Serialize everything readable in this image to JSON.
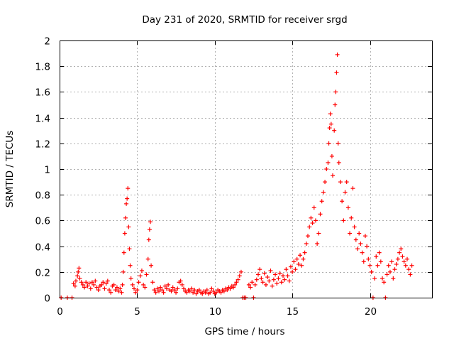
{
  "chart_data": {
    "type": "scatter",
    "title": "Day 231 of 2020, SRMTID for receiver srgd",
    "xlabel": "GPS time / hours",
    "ylabel": "SRMTID / TECUs",
    "xlim": [
      0,
      24
    ],
    "ylim": [
      0,
      2
    ],
    "xticks": [
      0,
      5,
      10,
      15,
      20
    ],
    "yticks": [
      0,
      0.2,
      0.4,
      0.6,
      0.8,
      1,
      1.2,
      1.4,
      1.6,
      1.8,
      2
    ],
    "xtick_labels": [
      "0",
      "5",
      "10",
      "15",
      "20"
    ],
    "ytick_labels": [
      "0",
      "0.2",
      "0.4",
      "0.6",
      "0.8",
      "1",
      "1.2",
      "1.4",
      "1.6",
      "1.8",
      "2"
    ],
    "grid": true,
    "marker": "+",
    "marker_color": "#ff0000",
    "series": [
      {
        "name": "SRMTID",
        "points": [
          [
            0.1,
            0.0
          ],
          [
            0.5,
            0.0
          ],
          [
            0.8,
            0.0
          ],
          [
            0.9,
            0.11
          ],
          [
            1.0,
            0.09
          ],
          [
            1.05,
            0.13
          ],
          [
            1.15,
            0.17
          ],
          [
            1.2,
            0.2
          ],
          [
            1.25,
            0.23
          ],
          [
            1.3,
            0.15
          ],
          [
            1.4,
            0.12
          ],
          [
            1.5,
            0.1
          ],
          [
            1.6,
            0.08
          ],
          [
            1.7,
            0.12
          ],
          [
            1.8,
            0.09
          ],
          [
            1.9,
            0.11
          ],
          [
            2.0,
            0.07
          ],
          [
            2.1,
            0.12
          ],
          [
            2.2,
            0.1
          ],
          [
            2.3,
            0.13
          ],
          [
            2.4,
            0.08
          ],
          [
            2.5,
            0.06
          ],
          [
            2.6,
            0.09
          ],
          [
            2.7,
            0.1
          ],
          [
            2.8,
            0.12
          ],
          [
            2.9,
            0.07
          ],
          [
            3.0,
            0.11
          ],
          [
            3.1,
            0.13
          ],
          [
            3.2,
            0.06
          ],
          [
            3.3,
            0.04
          ],
          [
            3.4,
            0.09
          ],
          [
            3.5,
            0.1
          ],
          [
            3.6,
            0.06
          ],
          [
            3.7,
            0.08
          ],
          [
            3.8,
            0.05
          ],
          [
            3.9,
            0.07
          ],
          [
            4.0,
            0.04
          ],
          [
            4.05,
            0.1
          ],
          [
            4.1,
            0.2
          ],
          [
            4.15,
            0.35
          ],
          [
            4.2,
            0.5
          ],
          [
            4.25,
            0.62
          ],
          [
            4.3,
            0.73
          ],
          [
            4.35,
            0.77
          ],
          [
            4.4,
            0.85
          ],
          [
            4.45,
            0.55
          ],
          [
            4.5,
            0.38
          ],
          [
            4.55,
            0.25
          ],
          [
            4.6,
            0.15
          ],
          [
            4.7,
            0.1
          ],
          [
            4.8,
            0.07
          ],
          [
            4.9,
            0.04
          ],
          [
            5.0,
            0.06
          ],
          [
            5.1,
            0.12
          ],
          [
            5.2,
            0.17
          ],
          [
            5.3,
            0.21
          ],
          [
            5.4,
            0.1
          ],
          [
            5.5,
            0.08
          ],
          [
            5.6,
            0.18
          ],
          [
            5.7,
            0.3
          ],
          [
            5.75,
            0.45
          ],
          [
            5.8,
            0.53
          ],
          [
            5.85,
            0.59
          ],
          [
            5.9,
            0.25
          ],
          [
            6.0,
            0.12
          ],
          [
            6.1,
            0.06
          ],
          [
            6.2,
            0.04
          ],
          [
            6.3,
            0.07
          ],
          [
            6.4,
            0.05
          ],
          [
            6.5,
            0.08
          ],
          [
            6.6,
            0.06
          ],
          [
            6.7,
            0.04
          ],
          [
            6.8,
            0.09
          ],
          [
            6.9,
            0.07
          ],
          [
            7.0,
            0.1
          ],
          [
            7.1,
            0.06
          ],
          [
            7.2,
            0.05
          ],
          [
            7.3,
            0.08
          ],
          [
            7.4,
            0.06
          ],
          [
            7.5,
            0.04
          ],
          [
            7.6,
            0.07
          ],
          [
            7.7,
            0.12
          ],
          [
            7.8,
            0.13
          ],
          [
            7.9,
            0.1
          ],
          [
            8.0,
            0.07
          ],
          [
            8.1,
            0.05
          ],
          [
            8.2,
            0.04
          ],
          [
            8.3,
            0.06
          ],
          [
            8.4,
            0.05
          ],
          [
            8.5,
            0.07
          ],
          [
            8.6,
            0.04
          ],
          [
            8.7,
            0.06
          ],
          [
            8.8,
            0.03
          ],
          [
            8.9,
            0.05
          ],
          [
            9.0,
            0.06
          ],
          [
            9.1,
            0.04
          ],
          [
            9.2,
            0.03
          ],
          [
            9.3,
            0.05
          ],
          [
            9.4,
            0.04
          ],
          [
            9.5,
            0.06
          ],
          [
            9.6,
            0.03
          ],
          [
            9.7,
            0.04
          ],
          [
            9.8,
            0.07
          ],
          [
            9.9,
            0.05
          ],
          [
            10.0,
            0.03
          ],
          [
            10.1,
            0.04
          ],
          [
            10.2,
            0.06
          ],
          [
            10.3,
            0.05
          ],
          [
            10.4,
            0.04
          ],
          [
            10.5,
            0.06
          ],
          [
            10.6,
            0.05
          ],
          [
            10.7,
            0.07
          ],
          [
            10.8,
            0.06
          ],
          [
            10.9,
            0.08
          ],
          [
            11.0,
            0.07
          ],
          [
            11.1,
            0.09
          ],
          [
            11.2,
            0.08
          ],
          [
            11.3,
            0.1
          ],
          [
            11.4,
            0.12
          ],
          [
            11.5,
            0.14
          ],
          [
            11.6,
            0.17
          ],
          [
            11.7,
            0.2
          ],
          [
            11.8,
            0.0
          ],
          [
            11.9,
            0.0
          ],
          [
            12.0,
            0.0
          ],
          [
            12.2,
            0.1
          ],
          [
            12.3,
            0.08
          ],
          [
            12.4,
            0.12
          ],
          [
            12.5,
            0.0
          ],
          [
            12.6,
            0.1
          ],
          [
            12.7,
            0.14
          ],
          [
            12.8,
            0.18
          ],
          [
            12.9,
            0.22
          ],
          [
            13.0,
            0.15
          ],
          [
            13.1,
            0.12
          ],
          [
            13.2,
            0.19
          ],
          [
            13.3,
            0.1
          ],
          [
            13.4,
            0.16
          ],
          [
            13.5,
            0.13
          ],
          [
            13.6,
            0.21
          ],
          [
            13.7,
            0.09
          ],
          [
            13.8,
            0.14
          ],
          [
            13.9,
            0.18
          ],
          [
            14.0,
            0.11
          ],
          [
            14.1,
            0.15
          ],
          [
            14.2,
            0.19
          ],
          [
            14.3,
            0.12
          ],
          [
            14.4,
            0.17
          ],
          [
            14.5,
            0.14
          ],
          [
            14.6,
            0.22
          ],
          [
            14.7,
            0.17
          ],
          [
            14.8,
            0.13
          ],
          [
            14.9,
            0.24
          ],
          [
            15.0,
            0.2
          ],
          [
            15.1,
            0.28
          ],
          [
            15.2,
            0.22
          ],
          [
            15.3,
            0.3
          ],
          [
            15.4,
            0.26
          ],
          [
            15.5,
            0.33
          ],
          [
            15.6,
            0.25
          ],
          [
            15.7,
            0.3
          ],
          [
            15.8,
            0.35
          ],
          [
            15.9,
            0.42
          ],
          [
            16.0,
            0.48
          ],
          [
            16.1,
            0.55
          ],
          [
            16.2,
            0.62
          ],
          [
            16.3,
            0.58
          ],
          [
            16.4,
            0.7
          ],
          [
            16.5,
            0.6
          ],
          [
            16.6,
            0.42
          ],
          [
            16.7,
            0.5
          ],
          [
            16.8,
            0.65
          ],
          [
            16.9,
            0.75
          ],
          [
            17.0,
            0.82
          ],
          [
            17.1,
            0.9
          ],
          [
            17.2,
            1.0
          ],
          [
            17.3,
            1.05
          ],
          [
            17.35,
            1.2
          ],
          [
            17.4,
            1.32
          ],
          [
            17.45,
            1.43
          ],
          [
            17.5,
            1.35
          ],
          [
            17.55,
            1.1
          ],
          [
            17.6,
            0.95
          ],
          [
            17.7,
            1.3
          ],
          [
            17.75,
            1.5
          ],
          [
            17.8,
            1.6
          ],
          [
            17.85,
            1.75
          ],
          [
            17.9,
            1.89
          ],
          [
            17.95,
            1.2
          ],
          [
            18.0,
            1.05
          ],
          [
            18.1,
            0.9
          ],
          [
            18.2,
            0.75
          ],
          [
            18.3,
            0.6
          ],
          [
            18.4,
            0.82
          ],
          [
            18.5,
            0.9
          ],
          [
            18.6,
            0.7
          ],
          [
            18.7,
            0.5
          ],
          [
            18.8,
            0.62
          ],
          [
            18.9,
            0.85
          ],
          [
            19.0,
            0.55
          ],
          [
            19.1,
            0.45
          ],
          [
            19.2,
            0.38
          ],
          [
            19.3,
            0.5
          ],
          [
            19.4,
            0.42
          ],
          [
            19.5,
            0.35
          ],
          [
            19.6,
            0.28
          ],
          [
            19.7,
            0.48
          ],
          [
            19.8,
            0.4
          ],
          [
            19.9,
            0.3
          ],
          [
            20.0,
            0.25
          ],
          [
            20.1,
            0.2
          ],
          [
            20.2,
            0.0
          ],
          [
            20.3,
            0.15
          ],
          [
            20.4,
            0.32
          ],
          [
            20.5,
            0.25
          ],
          [
            20.6,
            0.35
          ],
          [
            20.7,
            0.28
          ],
          [
            20.8,
            0.15
          ],
          [
            20.9,
            0.12
          ],
          [
            21.0,
            0.0
          ],
          [
            21.1,
            0.18
          ],
          [
            21.2,
            0.25
          ],
          [
            21.3,
            0.2
          ],
          [
            21.4,
            0.28
          ],
          [
            21.5,
            0.15
          ],
          [
            21.6,
            0.22
          ],
          [
            21.7,
            0.26
          ],
          [
            21.8,
            0.3
          ],
          [
            21.9,
            0.35
          ],
          [
            22.0,
            0.38
          ],
          [
            22.1,
            0.32
          ],
          [
            22.2,
            0.28
          ],
          [
            22.3,
            0.25
          ],
          [
            22.4,
            0.3
          ],
          [
            22.5,
            0.22
          ],
          [
            22.6,
            0.18
          ],
          [
            22.7,
            0.25
          ]
        ]
      }
    ]
  }
}
